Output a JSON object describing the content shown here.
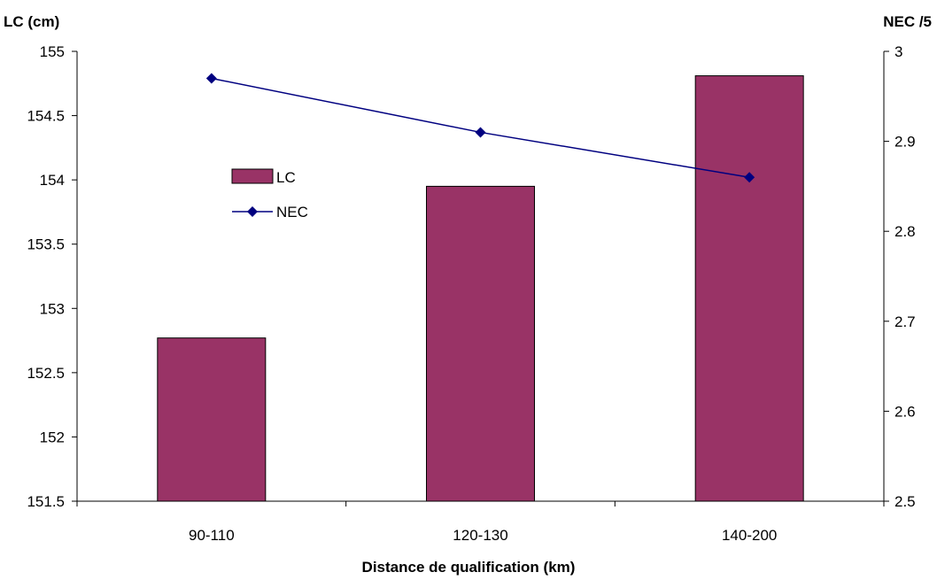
{
  "chart_data": {
    "type": "bar",
    "categories": [
      "90-110",
      "120-130",
      "140-200"
    ],
    "series": [
      {
        "name": "LC",
        "type": "bar",
        "axis": "left",
        "color": "#993366",
        "values": [
          152.77,
          153.95,
          154.81
        ]
      },
      {
        "name": "NEC",
        "type": "line",
        "axis": "right",
        "color": "#000080",
        "marker": "diamond",
        "values": [
          2.97,
          2.91,
          2.86
        ]
      }
    ],
    "xlabel": "Distance de qualification (km)",
    "ylabel": "LC (cm)",
    "y2label": "NEC /5",
    "ylim": [
      151.5,
      155
    ],
    "y2lim": [
      2.5,
      3
    ],
    "yticks": [
      "151.5",
      "152",
      "152.5",
      "153",
      "153.5",
      "154",
      "154.5",
      "155"
    ],
    "y2ticks": [
      "2.5",
      "2.6",
      "2.7",
      "2.8",
      "2.9",
      "3"
    ],
    "legend_position": "upper-left-inside",
    "grid": false
  }
}
